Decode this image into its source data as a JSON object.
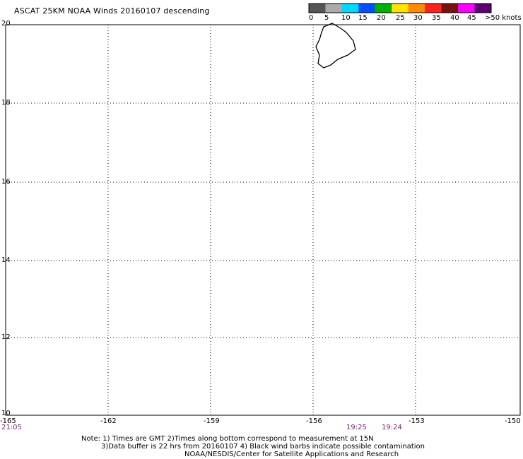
{
  "title": "ASCAT 25KM NOAA Winds 20160107 descending",
  "legend": {
    "labels": [
      "0",
      "5",
      "10",
      "15",
      "20",
      "25",
      "30",
      "35",
      "40",
      "45",
      ">50 knots"
    ],
    "colors": [
      "#555555",
      "#aaaaaa",
      "#00d8ff",
      "#0050ff",
      "#00b000",
      "#ffe400",
      "#ff8c00",
      "#ff2020",
      "#7a1010",
      "#ff00ff",
      "#5a0070"
    ]
  },
  "lat_labels": [
    "20",
    "18",
    "16",
    "14",
    "12",
    "10"
  ],
  "lon_labels": [
    "-165",
    "-162",
    "-159",
    "-156",
    "-153",
    "-150"
  ],
  "times": [
    "21:05",
    "19:25",
    "19:24"
  ],
  "notes": [
    "Note: 1) Times are GMT 2)Times along bottom correspond to measurement at 15N",
    "3)Data buffer is 22 hrs from 20160107 4) Black wind barbs indicate possible contamination",
    "NOAA/NESDIS/Center for Satellite Applications and Research"
  ]
}
